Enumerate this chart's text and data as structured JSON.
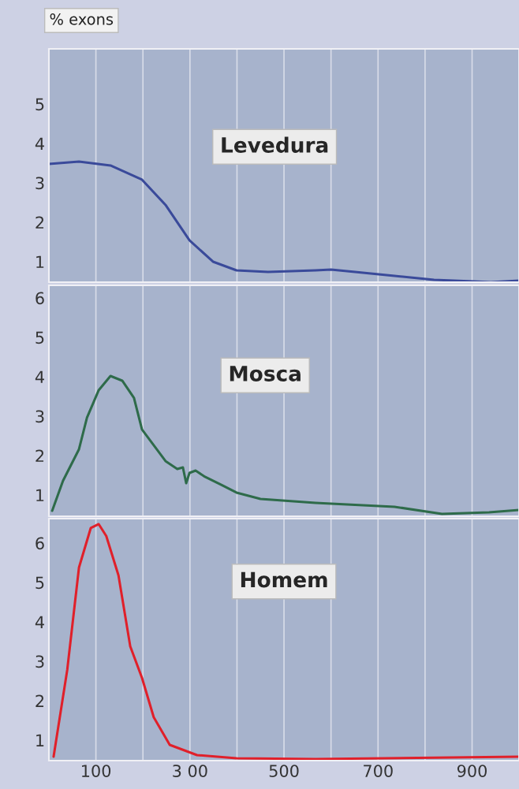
{
  "chart_data": [
    {
      "type": "line",
      "title": "Levedura",
      "ylabel": "% exons",
      "x": [
        0,
        64,
        131,
        198,
        248,
        299,
        349,
        399,
        466,
        567,
        600,
        651,
        735,
        819,
        903,
        940,
        1000
      ],
      "series": [
        {
          "color": "#3a4a9a",
          "values": [
            3.48,
            3.54,
            3.44,
            3.08,
            2.44,
            1.54,
            1.0,
            0.78,
            0.74,
            0.78,
            0.8,
            0.74,
            0.64,
            0.54,
            0.5,
            0.48,
            0.52
          ]
        }
      ],
      "xlim": [
        0,
        1000
      ],
      "ylim": [
        0.48,
        6.4
      ],
      "yticks": [
        1,
        2,
        3,
        4,
        5
      ],
      "grid": "x",
      "tick_labels": "y"
    },
    {
      "type": "line",
      "title": "Mosca",
      "x": [
        7,
        30,
        64,
        81,
        106,
        131,
        156,
        181,
        198,
        223,
        248,
        273,
        285,
        292,
        299,
        312,
        332,
        366,
        399,
        450,
        567,
        735,
        836,
        936,
        1000
      ],
      "series": [
        {
          "color": "#2e6b4a",
          "values": [
            0.6,
            1.36,
            2.16,
            2.96,
            3.66,
            4.02,
            3.9,
            3.46,
            2.66,
            2.26,
            1.86,
            1.66,
            1.7,
            1.3,
            1.56,
            1.62,
            1.46,
            1.26,
            1.06,
            0.9,
            0.8,
            0.7,
            0.52,
            0.56,
            0.62
          ]
        }
      ],
      "xlim": [
        0,
        1000
      ],
      "ylim": [
        0.46,
        6.32
      ],
      "yticks": [
        1,
        2,
        3,
        4,
        5,
        6
      ],
      "grid": "x",
      "tick_labels": "y"
    },
    {
      "type": "line",
      "title": "Homem",
      "x": [
        10,
        39,
        64,
        89,
        106,
        122,
        148,
        173,
        198,
        223,
        257,
        315,
        399,
        567,
        1000
      ],
      "series": [
        {
          "color": "#e0202a",
          "values": [
            0.58,
            2.78,
            5.38,
            6.38,
            6.48,
            6.18,
            5.18,
            3.38,
            2.58,
            1.58,
            0.88,
            0.62,
            0.54,
            0.52,
            0.58
          ]
        }
      ],
      "xlim": [
        0,
        1000
      ],
      "ylim": [
        0.48,
        6.62
      ],
      "yticks": [
        1,
        2,
        3,
        4,
        5,
        6
      ],
      "xticks": [
        {
          "value": 100,
          "label": "100"
        },
        {
          "value": 200,
          "label": null
        },
        {
          "value": 300,
          "label": "3 00"
        },
        {
          "value": 400,
          "label": null
        },
        {
          "value": 500,
          "label": "500"
        },
        {
          "value": 600,
          "label": null
        },
        {
          "value": 700,
          "label": "700"
        },
        {
          "value": 800,
          "label": null
        },
        {
          "value": 900,
          "label": "900"
        }
      ],
      "grid": "x"
    }
  ]
}
